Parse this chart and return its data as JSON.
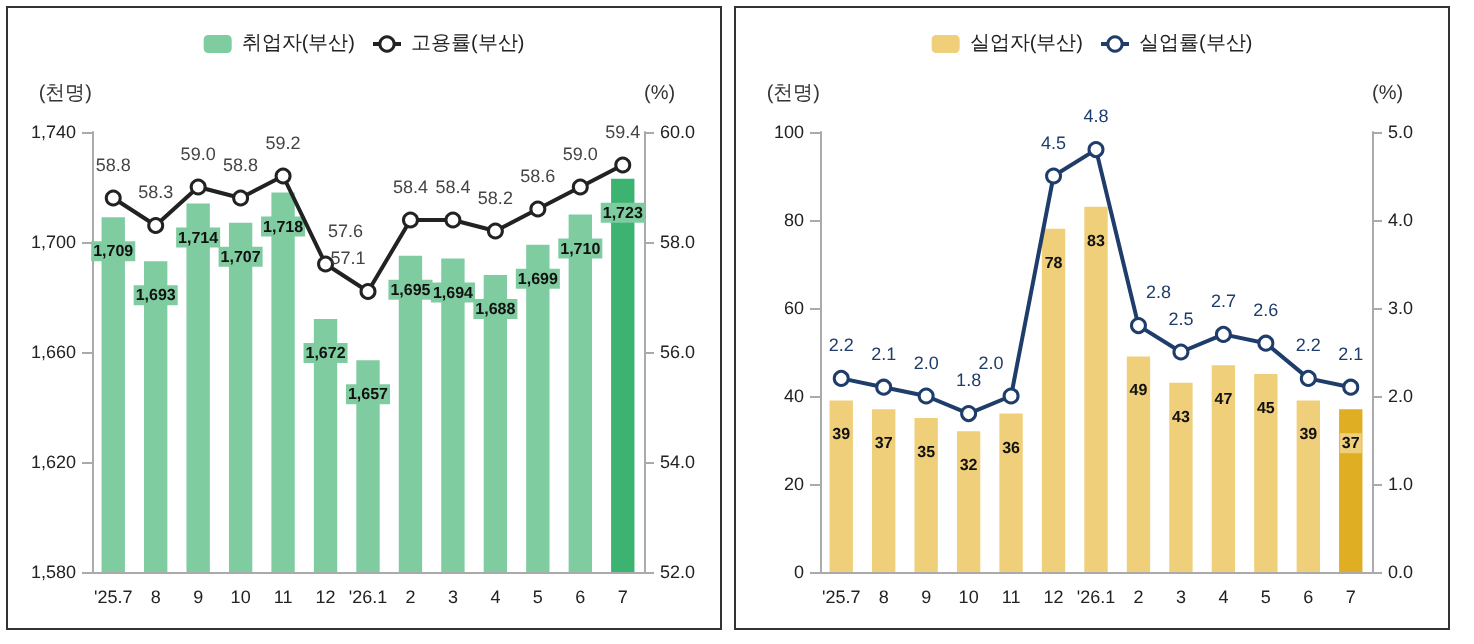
{
  "chart_data": [
    {
      "type": "bar",
      "categories": [
        "'25.7",
        "8",
        "9",
        "10",
        "11",
        "12",
        "'26.1",
        "2",
        "3",
        "4",
        "5",
        "6",
        "7"
      ],
      "ylabel": "(천명)",
      "y2label": "(%)",
      "legend": "top",
      "grid": false,
      "marker": "circle",
      "ylim": [
        1580,
        1740
      ],
      "yticks": [
        {
          "value": 1580,
          "label": "1,580"
        },
        {
          "value": 1620,
          "label": "1,620"
        },
        {
          "value": 1660,
          "label": "1,660"
        },
        {
          "value": 1700,
          "label": "1,700"
        },
        {
          "value": 1740,
          "label": "1,740"
        }
      ],
      "y2lim": [
        52,
        60
      ],
      "y2ticks": [
        {
          "value": 52,
          "label": "52.0"
        },
        {
          "value": 54,
          "label": "54.0"
        },
        {
          "value": 56,
          "label": "56.0"
        },
        {
          "value": 58,
          "label": "58.0"
        },
        {
          "value": 60,
          "label": "60.0"
        }
      ],
      "series": [
        {
          "name": "취업자(부산)",
          "color": "#7fcca0",
          "colors": [
            "#7fcca0",
            "#7fcca0",
            "#7fcca0",
            "#7fcca0",
            "#7fcca0",
            "#7fcca0",
            "#7fcca0",
            "#7fcca0",
            "#7fcca0",
            "#7fcca0",
            "#7fcca0",
            "#7fcca0",
            "#3cb371"
          ],
          "values": [
            1709,
            1693,
            1714,
            1707,
            1718,
            1672,
            1657,
            1695,
            1694,
            1688,
            1699,
            1710,
            1723
          ],
          "value_labels": [
            "1,709",
            "1,693",
            "1,714",
            "1,707",
            "1,718",
            "1,672",
            "1,657",
            "1,695",
            "1,694",
            "1,688",
            "1,699",
            "1,710",
            "1,723"
          ]
        },
        {
          "type": "line",
          "axis": "y2",
          "name": "고용률(부산)",
          "color": "#222222",
          "values": [
            58.8,
            58.3,
            59.0,
            58.8,
            59.2,
            57.6,
            57.1,
            58.4,
            58.4,
            58.2,
            58.6,
            59.0,
            59.4
          ],
          "value_labels": [
            "58.8",
            "58.3",
            "59.0",
            "58.8",
            "59.2",
            "57.6",
            "57.1",
            "58.4",
            "58.4",
            "58.2",
            "58.6",
            "59.0",
            "59.4"
          ]
        }
      ]
    },
    {
      "type": "bar",
      "categories": [
        "'25.7",
        "8",
        "9",
        "10",
        "11",
        "12",
        "'26.1",
        "2",
        "3",
        "4",
        "5",
        "6",
        "7"
      ],
      "ylabel": "(천명)",
      "y2label": "(%)",
      "legend": "top",
      "grid": false,
      "marker": "circle",
      "ylim": [
        0,
        100
      ],
      "yticks": [
        0,
        20,
        40,
        60,
        80,
        100
      ],
      "y2lim": [
        0,
        5
      ],
      "y2ticks": [
        {
          "value": 0,
          "label": "0.0"
        },
        {
          "value": 1,
          "label": "1.0"
        },
        {
          "value": 2,
          "label": "2.0"
        },
        {
          "value": 3,
          "label": "3.0"
        },
        {
          "value": 4,
          "label": "4.0"
        },
        {
          "value": 5,
          "label": "5.0"
        }
      ],
      "series": [
        {
          "name": "실업자(부산)",
          "color": "#f0cf7a",
          "colors": [
            "#f0cf7a",
            "#f0cf7a",
            "#f0cf7a",
            "#f0cf7a",
            "#f0cf7a",
            "#f0cf7a",
            "#f0cf7a",
            "#f0cf7a",
            "#f0cf7a",
            "#f0cf7a",
            "#f0cf7a",
            "#f0cf7a",
            "#e0ae22"
          ],
          "values": [
            39,
            37,
            35,
            32,
            36,
            78,
            83,
            49,
            43,
            47,
            45,
            39,
            37
          ],
          "value_labels": [
            "39",
            "37",
            "35",
            "32",
            "36",
            "78",
            "83",
            "49",
            "43",
            "47",
            "45",
            "39",
            "37"
          ]
        },
        {
          "type": "line",
          "axis": "y2",
          "name": "실업률(부산)",
          "color": "#1f3d6b",
          "values": [
            2.2,
            2.1,
            2.0,
            1.8,
            2.0,
            4.5,
            4.8,
            2.8,
            2.5,
            2.7,
            2.6,
            2.2,
            2.1
          ],
          "value_labels": [
            "2.2",
            "2.1",
            "2.0",
            "1.8",
            "2.0",
            "4.5",
            "4.8",
            "2.8",
            "2.5",
            "2.7",
            "2.6",
            "2.2",
            "2.1"
          ]
        }
      ]
    }
  ]
}
